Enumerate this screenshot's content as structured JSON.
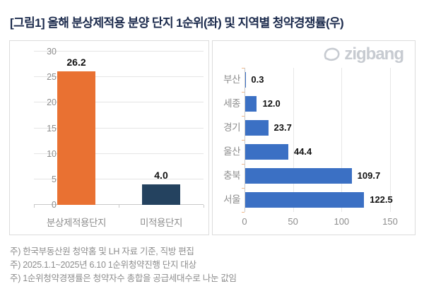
{
  "title": "[그림1] 올해 분상제적용 분양 단지 1순위(좌) 및 지역별 청약경쟁률(우)",
  "logo": {
    "text": "zigbang",
    "icon": "zigbang-mark",
    "color": "#c7cbd1"
  },
  "colors": {
    "orange": "#e97132",
    "navy": "#24425f",
    "blue": "#3b70c4",
    "grid": "#e5e5e5",
    "axis": "#c9c9c9",
    "tick_orange": "#f0b78a",
    "label_gray": "#8d8d8d",
    "value_black": "#111111",
    "title_navy": "#1b2a4c"
  },
  "chart_data": [
    {
      "type": "bar",
      "title": "올해 분상제적용 분양 단지 1순위 청약경쟁률",
      "categories": [
        "분상제적용단지",
        "미적용단지"
      ],
      "values": [
        26.2,
        4.0
      ],
      "value_labels": [
        "26.2",
        "4.0"
      ],
      "bar_colors": [
        "#e97132",
        "#24425f"
      ],
      "xlabel": "",
      "ylabel": "",
      "ylim": [
        0,
        30
      ],
      "yticks": [
        0,
        5,
        10,
        15,
        20,
        25,
        30
      ],
      "grid": true,
      "legend": false
    },
    {
      "type": "bar-horizontal",
      "title": "지역별 청약경쟁률",
      "categories": [
        "부산",
        "세종",
        "경기",
        "울산",
        "충북",
        "서울"
      ],
      "values": [
        0.3,
        12.0,
        23.7,
        44.4,
        109.7,
        122.5
      ],
      "value_labels": [
        "0.3",
        "12.0",
        "23.7",
        "44.4",
        "109.7",
        "122.5"
      ],
      "bar_color": "#3b70c4",
      "xlabel": "",
      "ylabel": "",
      "xlim": [
        0,
        150
      ],
      "xticks": [
        0,
        50,
        100,
        150
      ],
      "grid": true,
      "legend": false
    }
  ],
  "footnotes": [
    "주) 한국부동산원 청약홈 및 LH 자료 기준, 직방 편집",
    "주) 2025.1.1~2025년 6.10 1순위청약진행 단지 대상",
    "주) 1순위청약경쟁률은 청약자수 총합을 공급세대수로 나눈 값임"
  ]
}
